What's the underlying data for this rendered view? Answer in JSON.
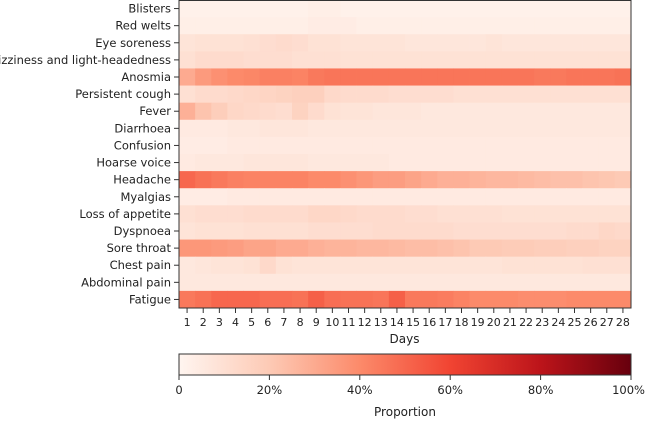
{
  "chart_data": {
    "type": "heatmap",
    "xlabel": "Days",
    "x": [
      1,
      2,
      3,
      4,
      5,
      6,
      7,
      8,
      9,
      10,
      11,
      12,
      13,
      14,
      15,
      16,
      17,
      18,
      19,
      20,
      21,
      22,
      23,
      24,
      25,
      26,
      27,
      28
    ],
    "y": [
      "Blisters",
      "Red welts",
      "Eye soreness",
      "Dizziness and light-headedness",
      "Anosmia",
      "Persistent cough",
      "Fever",
      "Diarrhoea",
      "Confusion",
      "Hoarse voice",
      "Headache",
      "Myalgias",
      "Loss of appetite",
      "Dyspnoea",
      "Sore throat",
      "Chest pain",
      "Abdominal pain",
      "Fatigue"
    ],
    "values": [
      [
        0.02,
        0.02,
        0.02,
        0.02,
        0.02,
        0.02,
        0.02,
        0.02,
        0.03,
        0.03,
        0.02,
        0.02,
        0.02,
        0.02,
        0.02,
        0.02,
        0.02,
        0.02,
        0.02,
        0.02,
        0.02,
        0.02,
        0.02,
        0.02,
        0.02,
        0.02,
        0.02,
        0.02
      ],
      [
        0.03,
        0.03,
        0.03,
        0.03,
        0.03,
        0.03,
        0.03,
        0.03,
        0.04,
        0.04,
        0.04,
        0.03,
        0.03,
        0.03,
        0.03,
        0.03,
        0.03,
        0.03,
        0.03,
        0.03,
        0.03,
        0.03,
        0.03,
        0.03,
        0.03,
        0.03,
        0.03,
        0.03
      ],
      [
        0.08,
        0.09,
        0.09,
        0.09,
        0.1,
        0.11,
        0.12,
        0.11,
        0.09,
        0.09,
        0.08,
        0.08,
        0.08,
        0.08,
        0.07,
        0.07,
        0.07,
        0.07,
        0.07,
        0.08,
        0.07,
        0.07,
        0.07,
        0.07,
        0.07,
        0.07,
        0.07,
        0.07
      ],
      [
        0.1,
        0.12,
        0.12,
        0.12,
        0.11,
        0.11,
        0.11,
        0.1,
        0.1,
        0.1,
        0.09,
        0.09,
        0.09,
        0.09,
        0.09,
        0.09,
        0.09,
        0.09,
        0.09,
        0.09,
        0.09,
        0.09,
        0.09,
        0.09,
        0.09,
        0.09,
        0.09,
        0.09
      ],
      [
        0.3,
        0.35,
        0.38,
        0.4,
        0.41,
        0.43,
        0.43,
        0.42,
        0.45,
        0.46,
        0.46,
        0.46,
        0.46,
        0.46,
        0.46,
        0.46,
        0.46,
        0.46,
        0.46,
        0.46,
        0.46,
        0.46,
        0.45,
        0.45,
        0.46,
        0.46,
        0.46,
        0.47
      ],
      [
        0.1,
        0.12,
        0.12,
        0.13,
        0.14,
        0.15,
        0.16,
        0.17,
        0.17,
        0.13,
        0.12,
        0.12,
        0.12,
        0.11,
        0.11,
        0.11,
        0.11,
        0.1,
        0.1,
        0.1,
        0.1,
        0.1,
        0.1,
        0.1,
        0.1,
        0.1,
        0.1,
        0.1
      ],
      [
        0.28,
        0.22,
        0.18,
        0.14,
        0.13,
        0.12,
        0.11,
        0.16,
        0.12,
        0.09,
        0.08,
        0.08,
        0.07,
        0.07,
        0.07,
        0.06,
        0.06,
        0.06,
        0.06,
        0.06,
        0.06,
        0.06,
        0.06,
        0.06,
        0.06,
        0.06,
        0.06,
        0.06
      ],
      [
        0.05,
        0.05,
        0.05,
        0.06,
        0.06,
        0.07,
        0.07,
        0.07,
        0.06,
        0.06,
        0.06,
        0.06,
        0.06,
        0.06,
        0.06,
        0.06,
        0.06,
        0.06,
        0.06,
        0.06,
        0.06,
        0.06,
        0.06,
        0.06,
        0.06,
        0.06,
        0.06,
        0.06
      ],
      [
        0.04,
        0.04,
        0.04,
        0.05,
        0.05,
        0.05,
        0.05,
        0.05,
        0.05,
        0.05,
        0.05,
        0.05,
        0.05,
        0.05,
        0.05,
        0.05,
        0.05,
        0.05,
        0.05,
        0.05,
        0.05,
        0.05,
        0.05,
        0.05,
        0.05,
        0.05,
        0.05,
        0.05
      ],
      [
        0.05,
        0.06,
        0.06,
        0.06,
        0.07,
        0.07,
        0.07,
        0.07,
        0.06,
        0.06,
        0.06,
        0.06,
        0.06,
        0.05,
        0.05,
        0.05,
        0.05,
        0.05,
        0.05,
        0.05,
        0.05,
        0.05,
        0.05,
        0.05,
        0.05,
        0.05,
        0.05,
        0.05
      ],
      [
        0.5,
        0.47,
        0.45,
        0.43,
        0.42,
        0.42,
        0.42,
        0.42,
        0.4,
        0.4,
        0.38,
        0.36,
        0.34,
        0.34,
        0.32,
        0.3,
        0.28,
        0.28,
        0.27,
        0.26,
        0.26,
        0.25,
        0.24,
        0.23,
        0.23,
        0.22,
        0.21,
        0.2
      ],
      [
        0.04,
        0.04,
        0.04,
        0.05,
        0.05,
        0.05,
        0.05,
        0.05,
        0.05,
        0.05,
        0.05,
        0.05,
        0.05,
        0.05,
        0.05,
        0.05,
        0.05,
        0.05,
        0.05,
        0.05,
        0.05,
        0.05,
        0.05,
        0.05,
        0.05,
        0.05,
        0.05,
        0.05
      ],
      [
        0.1,
        0.11,
        0.11,
        0.11,
        0.12,
        0.12,
        0.12,
        0.12,
        0.14,
        0.14,
        0.13,
        0.12,
        0.12,
        0.12,
        0.11,
        0.11,
        0.1,
        0.1,
        0.1,
        0.1,
        0.09,
        0.09,
        0.09,
        0.09,
        0.09,
        0.09,
        0.09,
        0.09
      ],
      [
        0.08,
        0.09,
        0.09,
        0.09,
        0.1,
        0.1,
        0.1,
        0.1,
        0.11,
        0.11,
        0.11,
        0.11,
        0.12,
        0.12,
        0.12,
        0.12,
        0.12,
        0.11,
        0.11,
        0.11,
        0.11,
        0.11,
        0.11,
        0.11,
        0.12,
        0.12,
        0.14,
        0.13
      ],
      [
        0.36,
        0.36,
        0.35,
        0.34,
        0.32,
        0.32,
        0.3,
        0.3,
        0.28,
        0.27,
        0.27,
        0.26,
        0.26,
        0.25,
        0.24,
        0.24,
        0.23,
        0.22,
        0.2,
        0.2,
        0.19,
        0.19,
        0.18,
        0.18,
        0.17,
        0.17,
        0.16,
        0.16
      ],
      [
        0.06,
        0.07,
        0.08,
        0.08,
        0.09,
        0.13,
        0.09,
        0.08,
        0.08,
        0.08,
        0.08,
        0.08,
        0.08,
        0.08,
        0.08,
        0.08,
        0.08,
        0.08,
        0.08,
        0.08,
        0.09,
        0.09,
        0.09,
        0.09,
        0.09,
        0.1,
        0.1,
        0.1
      ],
      [
        0.06,
        0.06,
        0.06,
        0.06,
        0.06,
        0.06,
        0.06,
        0.06,
        0.06,
        0.06,
        0.06,
        0.06,
        0.06,
        0.06,
        0.06,
        0.06,
        0.06,
        0.06,
        0.06,
        0.06,
        0.06,
        0.06,
        0.06,
        0.06,
        0.06,
        0.06,
        0.06,
        0.06
      ],
      [
        0.45,
        0.47,
        0.5,
        0.5,
        0.5,
        0.48,
        0.48,
        0.47,
        0.52,
        0.48,
        0.47,
        0.47,
        0.46,
        0.52,
        0.45,
        0.45,
        0.44,
        0.42,
        0.4,
        0.4,
        0.4,
        0.39,
        0.39,
        0.39,
        0.4,
        0.4,
        0.4,
        0.4
      ]
    ],
    "colorbar": {
      "label": "Proportion",
      "ticks": [
        "0",
        "20%",
        "40%",
        "60%",
        "80%",
        "100%"
      ],
      "range": [
        0,
        1
      ],
      "colors": [
        "#fff5f0",
        "#fdcab5",
        "#fc8a6a",
        "#f14432",
        "#bc141a",
        "#67000d"
      ]
    }
  }
}
